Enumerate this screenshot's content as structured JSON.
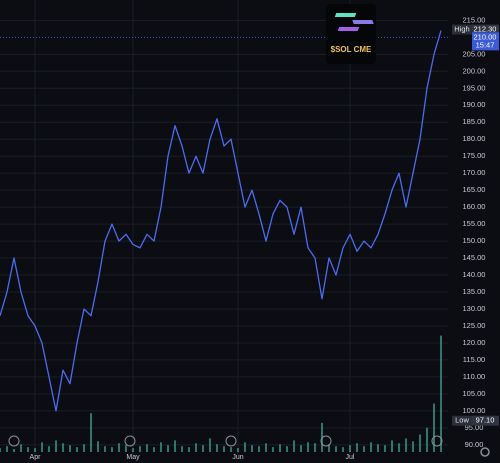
{
  "chart_data": {
    "type": "line",
    "title": "$SOL CME",
    "categories": [
      null,
      null,
      null,
      null,
      null,
      "Apr",
      null,
      null,
      null,
      null,
      null,
      null,
      null,
      null,
      null,
      null,
      null,
      null,
      null,
      "May",
      null,
      null,
      null,
      null,
      null,
      null,
      null,
      null,
      null,
      null,
      null,
      null,
      null,
      null,
      "Jun",
      null,
      null,
      null,
      null,
      null,
      null,
      null,
      null,
      null,
      null,
      null,
      null,
      null,
      null,
      null,
      "Jul",
      null,
      null,
      null,
      null,
      null,
      null,
      null,
      null,
      null,
      null,
      null,
      null,
      null
    ],
    "series": [
      {
        "color": "#4d6bf0",
        "values": [
          128,
          135,
          145,
          135,
          128,
          125,
          120,
          110,
          100,
          112,
          108,
          120,
          130,
          128,
          138,
          150,
          155,
          150,
          152,
          149,
          148,
          152,
          150,
          160,
          175,
          184,
          178,
          170,
          175,
          170,
          180,
          186,
          178,
          180,
          170,
          160,
          165,
          158,
          150,
          158,
          162,
          160,
          152,
          160,
          148,
          145,
          133,
          145,
          140,
          148,
          152,
          147,
          150,
          148,
          152,
          158,
          165,
          170,
          160,
          170,
          180,
          195,
          205,
          212
        ]
      }
    ],
    "volume": {
      "color": "#3aa596",
      "values": [
        4,
        6,
        3,
        8,
        5,
        4,
        10,
        6,
        12,
        9,
        7,
        5,
        8,
        40,
        11,
        6,
        5,
        9,
        7,
        4,
        6,
        8,
        5,
        10,
        7,
        12,
        6,
        5,
        9,
        7,
        14,
        8,
        6,
        5,
        4,
        10,
        7,
        6,
        9,
        5,
        8,
        6,
        12,
        7,
        10,
        9,
        30,
        8,
        6,
        5,
        7,
        9,
        6,
        10,
        8,
        7,
        12,
        9,
        14,
        11,
        18,
        25,
        50,
        120
      ]
    },
    "ylim": [
      87,
      221
    ],
    "yticks": [
      {
        "value": 90,
        "label": "90.00"
      },
      {
        "value": 95,
        "label": "95.00"
      },
      {
        "value": 100,
        "label": "100.00"
      },
      {
        "value": 105,
        "label": "105.00"
      },
      {
        "value": 110,
        "label": "110.00"
      },
      {
        "value": 115,
        "label": "115.00"
      },
      {
        "value": 120,
        "label": "120.00"
      },
      {
        "value": 125,
        "label": "125.00"
      },
      {
        "value": 130,
        "label": "130.00"
      },
      {
        "value": 135,
        "label": "135.00"
      },
      {
        "value": 140,
        "label": "140.00"
      },
      {
        "value": 145,
        "label": "145.00"
      },
      {
        "value": 150,
        "label": "150.00"
      },
      {
        "value": 155,
        "label": "155.00"
      },
      {
        "value": 160,
        "label": "160.00"
      },
      {
        "value": 165,
        "label": "165.00"
      },
      {
        "value": 170,
        "label": "170.00"
      },
      {
        "value": 175,
        "label": "175.00"
      },
      {
        "value": 180,
        "label": "180.00"
      },
      {
        "value": 185,
        "label": "185.00"
      },
      {
        "value": 190,
        "label": "190.00"
      },
      {
        "value": 195,
        "label": "195.00"
      },
      {
        "value": 200,
        "label": "200.00"
      },
      {
        "value": 205,
        "label": "205.00"
      },
      {
        "value": 215,
        "label": "215.00"
      }
    ],
    "grid": true,
    "high": {
      "label": "High",
      "value": 212.3,
      "value_label": "212.30"
    },
    "low": {
      "label": "Low",
      "value": 97.1,
      "value_label": "97.10"
    },
    "last_price": {
      "value": 210,
      "value_label": "210.00",
      "countdown": "15:47"
    }
  }
}
